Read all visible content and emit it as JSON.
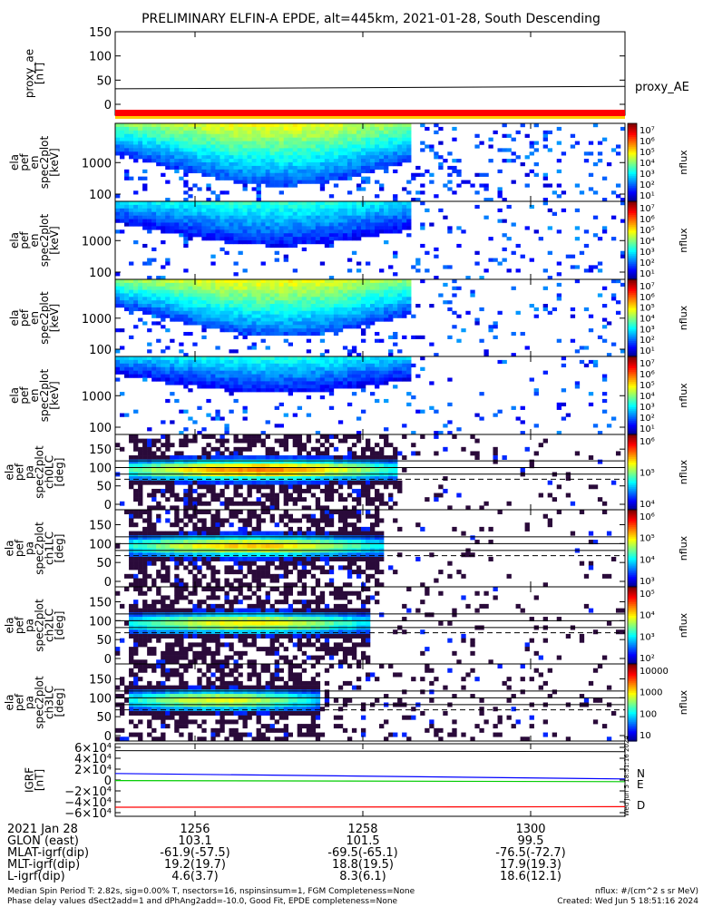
{
  "title": "PRELIMINARY ELFIN-A EPDE, alt=445km, 2021-01-28, South Descending",
  "watermark": "Wed Jun  5 18:51:16 2024",
  "panels": [
    {
      "id": "proxy",
      "ylabel": [
        "proxy_ae",
        "[nT]"
      ],
      "yticks": [
        "150",
        "100",
        "50",
        "0"
      ],
      "legend": "proxy_AE"
    },
    {
      "id": "pef_en_top",
      "ylabel": [
        "ela",
        "pef",
        "en",
        "spec2plot",
        "[keV]"
      ],
      "yticks": [
        "1000",
        "100"
      ],
      "colorbar": {
        "label": "nflux",
        "ticks": [
          "10⁷",
          "10⁶",
          "10⁵",
          "10⁴",
          "10³",
          "10²",
          "10¹"
        ]
      }
    },
    {
      "id": "pef_en_2",
      "ylabel": [
        "ela",
        "pef",
        "en",
        "spec2plot",
        "[keV]"
      ],
      "yticks": [
        "1000",
        "100"
      ],
      "colorbar": {
        "label": "nflux",
        "ticks": [
          "10⁷",
          "10⁶",
          "10⁵",
          "10⁴",
          "10³",
          "10²",
          "10¹"
        ]
      }
    },
    {
      "id": "pef_en_3",
      "ylabel": [
        "ela",
        "pef",
        "en",
        "spec2plot",
        "[keV]"
      ],
      "yticks": [
        "1000",
        "100"
      ],
      "colorbar": {
        "label": "nflux",
        "ticks": [
          "10⁷",
          "10⁶",
          "10⁵",
          "10⁴",
          "10³",
          "10²",
          "10¹"
        ]
      }
    },
    {
      "id": "pef_en_4",
      "ylabel": [
        "ela",
        "pef",
        "en",
        "spec2plot",
        "[keV]"
      ],
      "yticks": [
        "1000",
        "100"
      ],
      "colorbar": {
        "label": "nflux",
        "ticks": [
          "10⁷",
          "10⁶",
          "10⁵",
          "10⁴",
          "10³",
          "10²",
          "10¹"
        ]
      }
    },
    {
      "id": "ch0LC",
      "ylabel": [
        "ela",
        "pef",
        "pa",
        "spec2plot",
        "ch0LC",
        "[deg]"
      ],
      "yticks": [
        "150",
        "100",
        "50",
        "0"
      ],
      "colorbar": {
        "label": "nflux",
        "ticks": [
          "10⁶",
          "10⁵",
          "10⁴"
        ]
      }
    },
    {
      "id": "ch1LC",
      "ylabel": [
        "ela",
        "pef",
        "pa",
        "spec2plot",
        "ch1LC",
        "[deg]"
      ],
      "yticks": [
        "150",
        "100",
        "50",
        "0"
      ],
      "colorbar": {
        "label": "nflux",
        "ticks": [
          "10⁶",
          "10⁵",
          "10⁴",
          "10³"
        ]
      }
    },
    {
      "id": "ch2LC",
      "ylabel": [
        "ela",
        "pef",
        "pa",
        "spec2plot",
        "ch2LC",
        "[deg]"
      ],
      "yticks": [
        "150",
        "100",
        "50",
        "0"
      ],
      "colorbar": {
        "label": "nflux",
        "ticks": [
          "10⁵",
          "10⁴",
          "10³",
          "10²"
        ]
      }
    },
    {
      "id": "ch3LC",
      "ylabel": [
        "ela",
        "pef",
        "pa",
        "spec2plot",
        "ch3LC",
        "[deg]"
      ],
      "yticks": [
        "150",
        "100",
        "50",
        "0"
      ],
      "colorbar": {
        "label": "nflux",
        "ticks": [
          "10000",
          "1000",
          "100",
          "10"
        ]
      }
    },
    {
      "id": "igrf",
      "ylabel": [
        "IGRF",
        "[nT]"
      ],
      "yticks": [
        "6×10⁴",
        "4×10⁴",
        "2×10⁴",
        "0",
        "−2×10⁴",
        "−4×10⁴",
        "−6×10⁴"
      ],
      "legend": [
        "N",
        "E",
        "D"
      ]
    }
  ],
  "footer": {
    "rows": [
      {
        "label": "2021 Jan 28",
        "values": [
          "1256",
          "1258",
          "1300"
        ]
      },
      {
        "label": "GLON (east)",
        "values": [
          "103.1",
          "101.5",
          "99.5"
        ]
      },
      {
        "label": "MLAT-igrf(dip)",
        "values": [
          "-61.9(-57.5)",
          "-69.5(-65.1)",
          "-76.5(-72.7)"
        ]
      },
      {
        "label": "MLT-igrf(dip)",
        "values": [
          "19.2(19.7)",
          "18.8(19.5)",
          "17.9(19.3)"
        ]
      },
      {
        "label": "L-igrf(dip)",
        "values": [
          "4.6(3.7)",
          "8.3(6.1)",
          "18.6(12.1)"
        ]
      }
    ],
    "note_left_1": "Median Spin Period T: 2.82s, sig=0.00% T, nsectors=16, nspinsinsum=1, FGM Completeness=None",
    "note_left_2": "Phase delay values dSect2add=1 and dPhAng2add=-10.0, Good Fit, EPDE completeness=None",
    "note_right_1": "nflux: #/(cm^2 s sr MeV)",
    "note_right_2": "Created: Wed Jun  5 18:51:16 2024"
  },
  "colors": {
    "N": "#0000ff",
    "E": "#00cc00",
    "D": "#ff0000",
    "line": "#000000"
  },
  "chart_data": [
    {
      "type": "line",
      "title": "proxy_AE",
      "ylabel": "proxy_ae [nT]",
      "ylim": [
        0,
        150
      ],
      "series": [
        {
          "name": "proxy_AE",
          "x": [
            0,
            1
          ],
          "values": [
            32,
            37
          ]
        }
      ]
    },
    {
      "type": "heatmap",
      "ylabel": "ela pef en spec2plot [keV]",
      "ylim": [
        60,
        8000
      ],
      "yscale": "log",
      "colorbar": {
        "label": "nflux",
        "range": [
          10,
          10000000
        ],
        "scale": "log"
      },
      "description_values": {
        "peak_energy_keV": 100,
        "max_energy_keV": [
          1000,
          3000
        ],
        "peak_nflux": 1000000
      }
    },
    {
      "type": "heatmap",
      "ylabel": "ela pef en spec2plot [keV]",
      "ylim": [
        60,
        8000
      ],
      "yscale": "log",
      "colorbar": {
        "label": "nflux",
        "range": [
          10,
          10000000
        ],
        "scale": "log"
      },
      "description_values": {
        "peak_nflux": 10000
      }
    },
    {
      "type": "heatmap",
      "ylabel": "ela pef en spec2plot [keV]",
      "ylim": [
        60,
        8000
      ],
      "yscale": "log",
      "colorbar": {
        "label": "nflux",
        "range": [
          10,
          10000000
        ],
        "scale": "log"
      },
      "description_values": {
        "peak_nflux": 1000000
      }
    },
    {
      "type": "heatmap",
      "ylabel": "ela pef en spec2plot [keV]",
      "ylim": [
        60,
        8000
      ],
      "yscale": "log",
      "colorbar": {
        "label": "nflux",
        "range": [
          10,
          10000000
        ],
        "scale": "log"
      },
      "description_values": {
        "peak_nflux": 1000
      }
    },
    {
      "type": "heatmap",
      "ylabel": "ela pef pa spec2plot ch0LC [deg]",
      "ylim": [
        0,
        180
      ],
      "colorbar": {
        "label": "nflux",
        "range": [
          3000,
          10000000
        ],
        "scale": "log"
      },
      "reference_lines_deg": [
        118,
        100,
        82,
        68
      ]
    },
    {
      "type": "heatmap",
      "ylabel": "ela pef pa spec2plot ch1LC [deg]",
      "ylim": [
        0,
        180
      ],
      "colorbar": {
        "label": "nflux",
        "range": [
          500,
          3000000
        ],
        "scale": "log"
      },
      "reference_lines_deg": [
        118,
        100,
        82,
        68
      ]
    },
    {
      "type": "heatmap",
      "ylabel": "ela pef pa spec2plot ch2LC [deg]",
      "ylim": [
        0,
        180
      ],
      "colorbar": {
        "label": "nflux",
        "range": [
          50,
          500000
        ],
        "scale": "log"
      },
      "reference_lines_deg": [
        118,
        100,
        82,
        68
      ]
    },
    {
      "type": "heatmap",
      "ylabel": "ela pef pa spec2plot ch3LC [deg]",
      "ylim": [
        0,
        180
      ],
      "colorbar": {
        "label": "nflux",
        "range": [
          10,
          10000
        ],
        "scale": "log"
      },
      "reference_lines_deg": [
        118,
        100,
        82,
        68
      ]
    },
    {
      "type": "line",
      "ylabel": "IGRF [nT]",
      "ylim": [
        -60000,
        60000
      ],
      "series": [
        {
          "name": "N",
          "x": [
            0,
            1
          ],
          "values": [
            12000,
            2000
          ]
        },
        {
          "name": "E",
          "x": [
            0,
            1
          ],
          "values": [
            -1000,
            -3000
          ]
        },
        {
          "name": "D",
          "x": [
            0,
            1
          ],
          "values": [
            -50000,
            -49000
          ]
        }
      ]
    }
  ]
}
